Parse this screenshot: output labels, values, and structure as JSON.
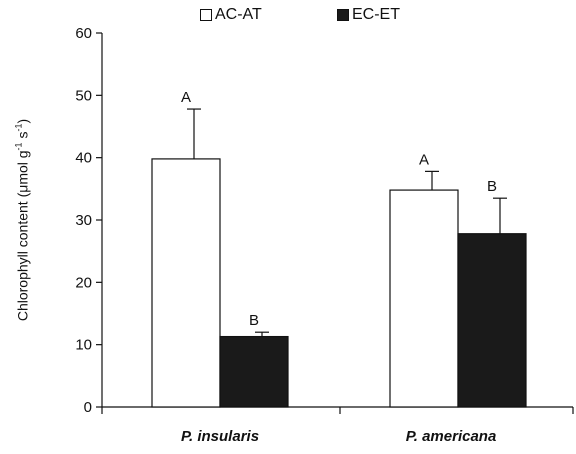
{
  "chart_data": {
    "type": "bar",
    "categories": [
      "P. insularis",
      "P. americana"
    ],
    "series": [
      {
        "name": "AC-AT",
        "values": [
          39.8,
          34.8
        ],
        "errors": [
          8.0,
          3.0
        ],
        "letters": [
          "A",
          "A"
        ],
        "color": "#ffffff"
      },
      {
        "name": "EC-ET",
        "values": [
          11.3,
          27.8
        ],
        "errors": [
          0.7,
          5.7
        ],
        "letters": [
          "B",
          "B"
        ],
        "color": "#1a1a1a"
      }
    ],
    "ylabel_main": "Chlorophyll content (μmol g",
    "ylabel_sup1": "-1",
    "ylabel_mid": " s",
    "ylabel_sup2": "-1",
    "ylabel_end": ")",
    "ylim": [
      0,
      60
    ],
    "yticks": [
      0,
      10,
      20,
      30,
      40,
      50,
      60
    ],
    "grid": false,
    "legend_position": "top-center"
  }
}
